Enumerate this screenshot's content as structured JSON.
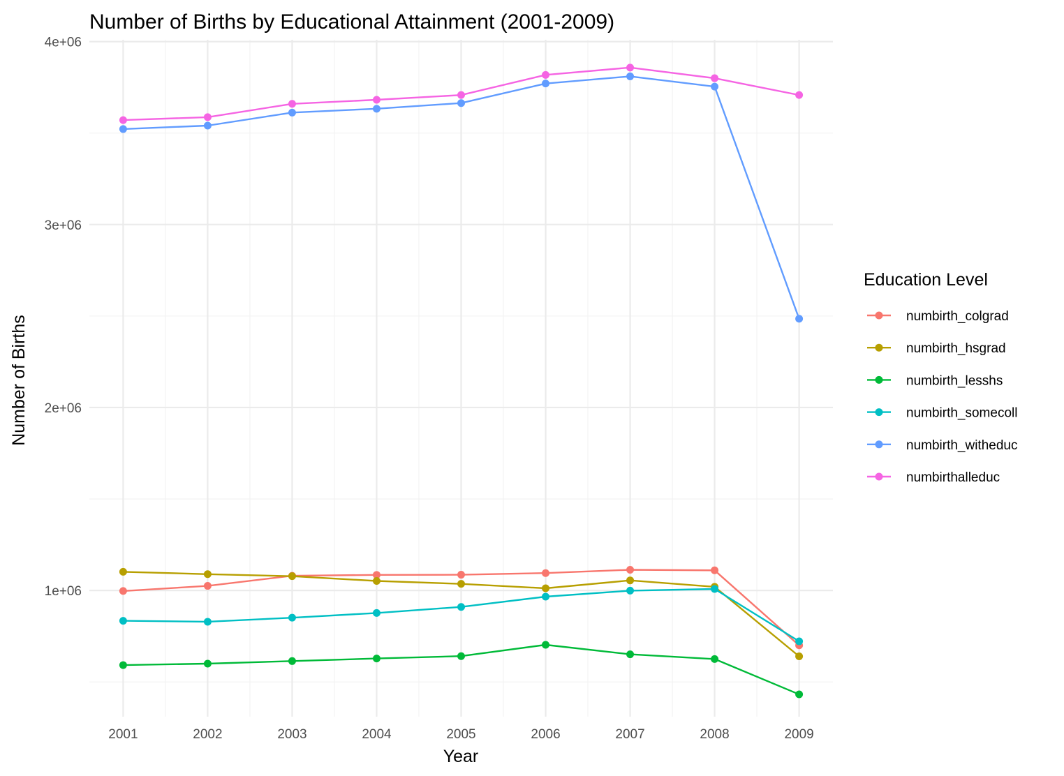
{
  "chart_data": {
    "type": "line",
    "title": "Number of Births by Educational Attainment (2001-2009)",
    "xlabel": "Year",
    "ylabel": "Number of Births",
    "x": [
      2001,
      2002,
      2003,
      2004,
      2005,
      2006,
      2007,
      2008,
      2009
    ],
    "x_ticks": [
      "2001",
      "2002",
      "2003",
      "2004",
      "2005",
      "2006",
      "2007",
      "2008",
      "2009"
    ],
    "y_ticks": [
      {
        "value": 1000000,
        "label": "1e+06"
      },
      {
        "value": 2000000,
        "label": "2e+06"
      },
      {
        "value": 3000000,
        "label": "3e+06"
      },
      {
        "value": 4000000,
        "label": "4e+06"
      }
    ],
    "xlim": [
      2000.6,
      2009.4
    ],
    "ylim": [
      310000,
      4010000
    ],
    "grid": true,
    "legend": {
      "title": "Education Level",
      "position": "right"
    },
    "series": [
      {
        "name": "numbirth_colgrad",
        "color": "#F8766D",
        "values": [
          997000,
          1025000,
          1080000,
          1085000,
          1086000,
          1095000,
          1113000,
          1110000,
          700000
        ]
      },
      {
        "name": "numbirth_hsgrad",
        "color": "#B79F00",
        "values": [
          1102000,
          1089000,
          1078000,
          1052000,
          1036000,
          1012000,
          1055000,
          1020000,
          640000
        ]
      },
      {
        "name": "numbirth_lesshs",
        "color": "#00BA38",
        "values": [
          592000,
          600000,
          614000,
          628000,
          641000,
          703000,
          651000,
          625000,
          432000
        ]
      },
      {
        "name": "numbirth_somecoll",
        "color": "#00BFC4",
        "values": [
          834000,
          829000,
          851000,
          877000,
          910000,
          966000,
          999000,
          1008000,
          722000
        ]
      },
      {
        "name": "numbirth_witheduc",
        "color": "#619CFF",
        "values": [
          3522000,
          3541000,
          3612000,
          3633000,
          3664000,
          3771000,
          3810000,
          3754000,
          2485000
        ]
      },
      {
        "name": "numbirthalleduc",
        "color": "#F564E3",
        "values": [
          3571000,
          3587000,
          3660000,
          3682000,
          3708000,
          3818000,
          3858000,
          3800000,
          3708000
        ]
      }
    ]
  }
}
